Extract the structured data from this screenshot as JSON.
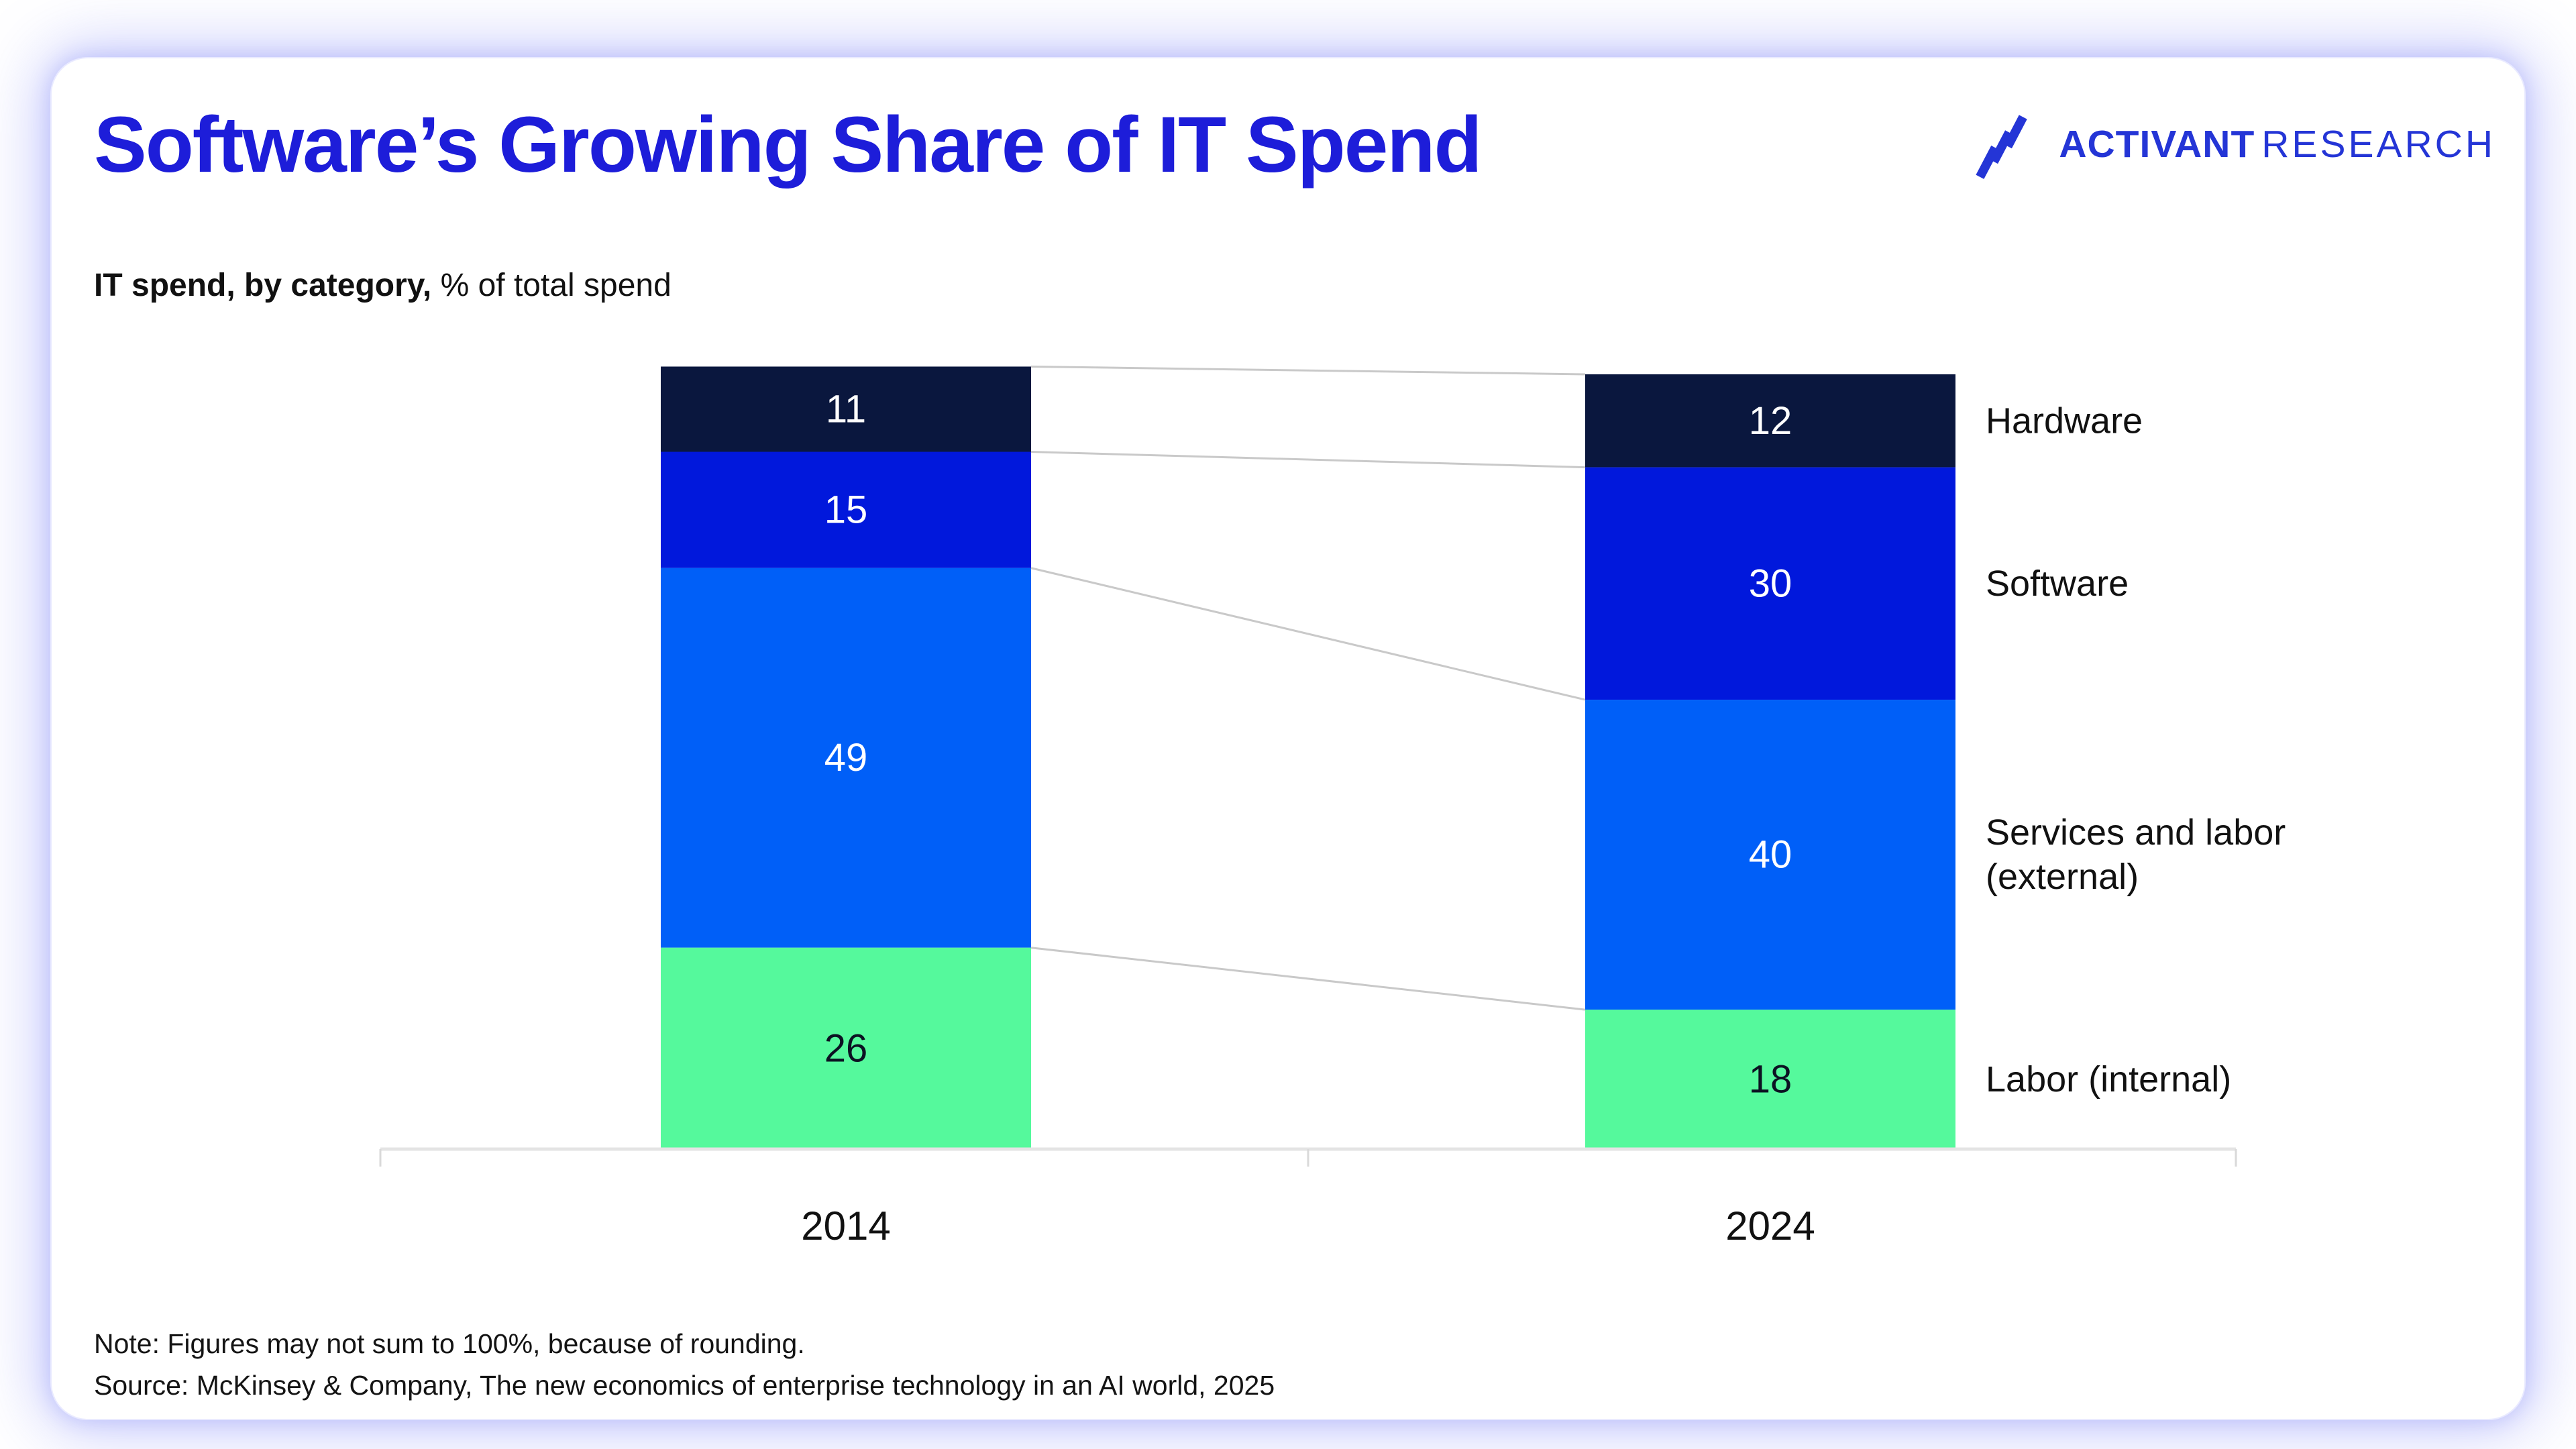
{
  "header": {
    "title": "Software’s Growing Share of IT Spend",
    "logo": {
      "brand": "ACTIVANT",
      "suffix": "RESEARCH"
    }
  },
  "subtitle": {
    "bold": "IT spend, by category,",
    "regular": "% of total spend"
  },
  "chart_data": {
    "type": "bar",
    "subtype": "stacked-column-with-connectors",
    "title": "Software’s Growing Share of IT Spend",
    "axis_note": "IT spend, by category, % of total spend",
    "categories": [
      "2014",
      "2024"
    ],
    "series": [
      {
        "name": "Hardware",
        "label_lines": [
          "Hardware"
        ],
        "values": [
          11,
          12
        ],
        "color": "#0A173E",
        "label_color": "#ffffff"
      },
      {
        "name": "Software",
        "label_lines": [
          "Software"
        ],
        "values": [
          15,
          30
        ],
        "color": "#0118DC",
        "label_color": "#ffffff"
      },
      {
        "name": "Services and labor (external)",
        "label_lines": [
          "Services and labor",
          "(external)"
        ],
        "values": [
          49,
          40
        ],
        "color": "#005FF8",
        "label_color": "#ffffff"
      },
      {
        "name": "Labor (internal)",
        "label_lines": [
          "Labor (internal)"
        ],
        "values": [
          26,
          18
        ],
        "color": "#55F99C",
        "label_color": "#0c1222"
      }
    ],
    "stack_order": "top-to-bottom",
    "value_unit": "%",
    "ylim": [
      0,
      101
    ],
    "grid": false,
    "legend_position": "right-of-last-bar",
    "connector_color": "#c9c9c9",
    "axis_color": "#e4e4e4"
  },
  "footer": {
    "note": "Note: Figures may not sum to 100%, because of rounding.",
    "source": "Source: McKinsey & Company, The new economics of enterprise technology in an AI world, 2025"
  },
  "colors": {
    "title_blue": "#1d1dd9",
    "logo_blue": "#2435d6",
    "hardware_navy": "#0A173E",
    "software_royal": "#0118DC",
    "services_bright": "#005FF8",
    "labor_green": "#55F99C",
    "card_glow": "#7c83f7"
  }
}
